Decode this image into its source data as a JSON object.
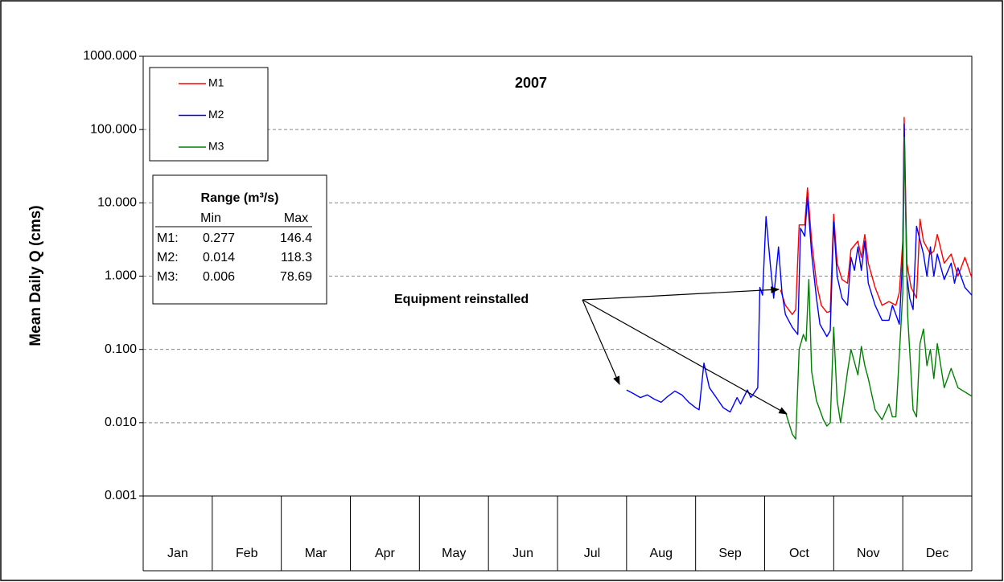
{
  "chart_data": {
    "type": "line",
    "title": "2007",
    "y_label": "Mean Daily Q (cms)",
    "log_scale": true,
    "grid": true,
    "legend": "upper left",
    "categories": [
      "Jan",
      "Feb",
      "Mar",
      "Apr",
      "May",
      "Jun",
      "Jul",
      "Aug",
      "Sep",
      "Oct",
      "Nov",
      "Dec"
    ],
    "xlim": [
      0,
      12
    ],
    "ylim": [
      0.001,
      1000
    ],
    "yticks": [
      {
        "value": 0.001,
        "label": "0.001"
      },
      {
        "value": 0.01,
        "label": "0.010"
      },
      {
        "value": 0.1,
        "label": "0.100"
      },
      {
        "value": 1,
        "label": "1.000"
      },
      {
        "value": 10,
        "label": "10.000"
      },
      {
        "value": 100,
        "label": "100.000"
      },
      {
        "value": 1000,
        "label": "1000.000"
      }
    ],
    "series": [
      {
        "name": "M1",
        "color": "#ff0000",
        "x": [
          9.23,
          9.3,
          9.4,
          9.45,
          9.5,
          9.58,
          9.62,
          9.68,
          9.75,
          9.82,
          9.9,
          9.95,
          10.0,
          10.05,
          10.12,
          10.2,
          10.25,
          10.35,
          10.4,
          10.45,
          10.5,
          10.6,
          10.7,
          10.8,
          10.9,
          10.95,
          11.0,
          11.02,
          11.06,
          11.12,
          11.2,
          11.25,
          11.3,
          11.4,
          11.45,
          11.5,
          11.6,
          11.7,
          11.8,
          11.9,
          12.0
        ],
        "values": [
          0.65,
          0.4,
          0.3,
          0.35,
          5,
          5,
          16,
          3,
          0.8,
          0.4,
          0.32,
          0.33,
          7,
          1.5,
          0.9,
          0.8,
          2.3,
          3,
          1.8,
          3.7,
          1.5,
          0.7,
          0.4,
          0.45,
          0.4,
          0.6,
          3,
          146.4,
          1.5,
          0.7,
          0.5,
          6,
          3,
          2,
          2.2,
          3.7,
          1.5,
          2,
          1,
          1.8,
          0.95
        ]
      },
      {
        "name": "M2",
        "color": "#0000ff",
        "x": [
          7.0,
          7.1,
          7.2,
          7.3,
          7.4,
          7.5,
          7.6,
          7.7,
          7.8,
          7.9,
          8.0,
          8.05,
          8.12,
          8.2,
          8.3,
          8.4,
          8.5,
          8.6,
          8.65,
          8.75,
          8.8,
          8.9,
          8.93,
          8.97,
          9.02,
          9.08,
          9.13,
          9.2,
          9.25,
          9.3,
          9.4,
          9.48,
          9.52,
          9.58,
          9.62,
          9.68,
          9.75,
          9.8,
          9.9,
          9.95,
          10.0,
          10.05,
          10.12,
          10.2,
          10.25,
          10.3,
          10.35,
          10.4,
          10.45,
          10.5,
          10.6,
          10.7,
          10.8,
          10.85,
          10.9,
          10.95,
          11.0,
          11.02,
          11.06,
          11.1,
          11.15,
          11.2,
          11.3,
          11.35,
          11.4,
          11.45,
          11.5,
          11.6,
          11.7,
          11.75,
          11.8,
          11.9,
          12.0
        ],
        "values": [
          0.028,
          0.025,
          0.022,
          0.024,
          0.021,
          0.019,
          0.023,
          0.027,
          0.024,
          0.019,
          0.016,
          0.015,
          0.065,
          0.03,
          0.022,
          0.016,
          0.014,
          0.022,
          0.018,
          0.028,
          0.022,
          0.03,
          0.7,
          0.55,
          6.5,
          1.5,
          0.5,
          2.5,
          0.6,
          0.3,
          0.2,
          0.16,
          4.5,
          3.5,
          12,
          2,
          0.5,
          0.22,
          0.15,
          0.18,
          5.5,
          1,
          0.5,
          0.4,
          1.8,
          1.2,
          2.5,
          1.2,
          3,
          0.8,
          0.4,
          0.25,
          0.25,
          0.4,
          0.3,
          0.22,
          2,
          118.3,
          1,
          0.5,
          0.35,
          4.8,
          2,
          1,
          2.5,
          1,
          2,
          0.9,
          1.5,
          0.8,
          1.3,
          0.7,
          0.55
        ]
      },
      {
        "name": "M3",
        "color": "#008000",
        "x": [
          9.3,
          9.35,
          9.4,
          9.45,
          9.5,
          9.56,
          9.6,
          9.64,
          9.68,
          9.75,
          9.85,
          9.9,
          9.95,
          10.0,
          10.05,
          10.1,
          10.2,
          10.25,
          10.35,
          10.4,
          10.45,
          10.5,
          10.6,
          10.7,
          10.8,
          10.85,
          10.9,
          11.0,
          11.02,
          11.07,
          11.15,
          11.2,
          11.25,
          11.3,
          11.35,
          11.4,
          11.45,
          11.5,
          11.6,
          11.7,
          11.8,
          12.0
        ],
        "values": [
          0.014,
          0.01,
          0.007,
          0.006,
          0.1,
          0.16,
          0.13,
          0.9,
          0.05,
          0.02,
          0.011,
          0.009,
          0.01,
          0.2,
          0.02,
          0.01,
          0.05,
          0.1,
          0.045,
          0.11,
          0.06,
          0.04,
          0.015,
          0.011,
          0.018,
          0.012,
          0.012,
          0.6,
          78.69,
          0.3,
          0.015,
          0.012,
          0.12,
          0.19,
          0.06,
          0.1,
          0.04,
          0.12,
          0.03,
          0.055,
          0.03,
          0.023
        ]
      }
    ],
    "annotation": "Equipment reinstalled",
    "range_table": {
      "title": "Range (m³/s)",
      "columns": [
        "Min",
        "Max"
      ],
      "rows": [
        {
          "label": "M1:",
          "min": 0.277,
          "max": 146.4
        },
        {
          "label": "M2:",
          "min": 0.014,
          "max": 118.3
        },
        {
          "label": "M3:",
          "min": 0.006,
          "max": 78.69
        }
      ]
    }
  }
}
